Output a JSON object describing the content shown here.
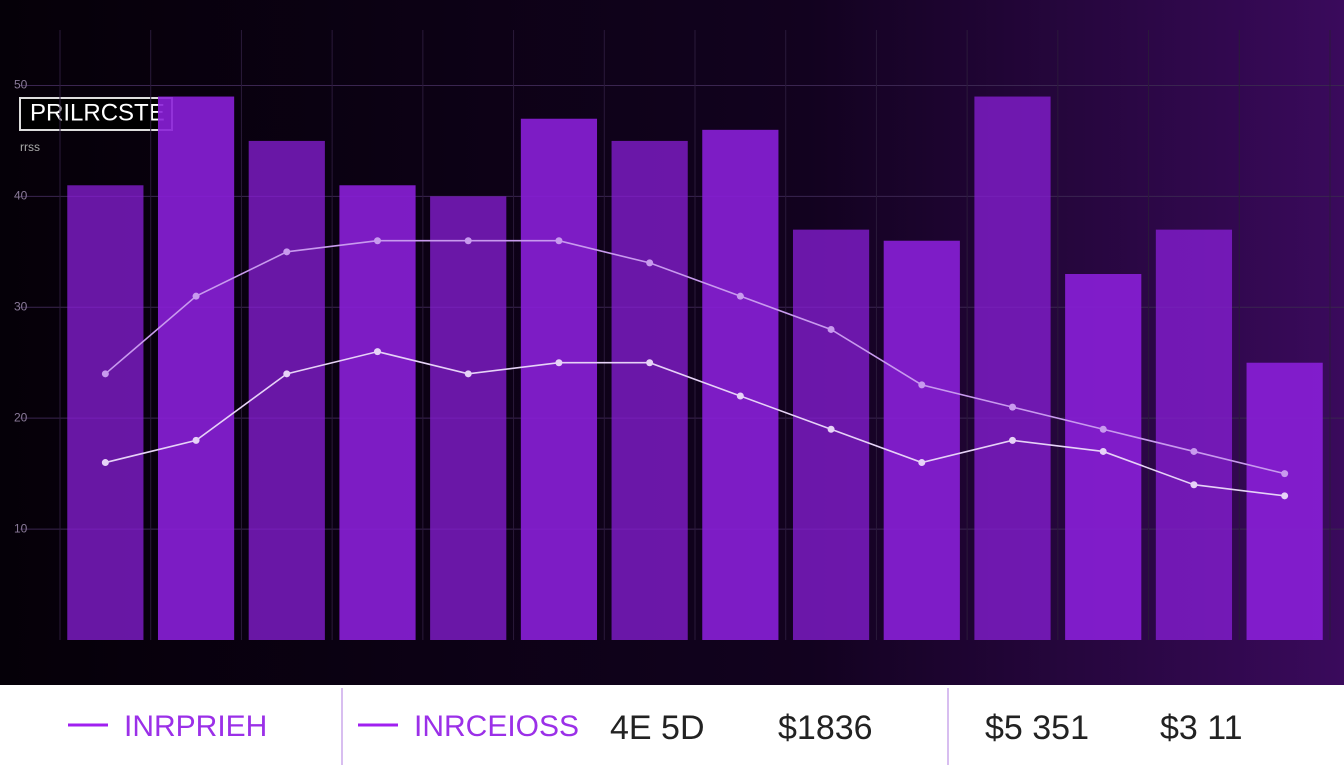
{
  "chart_data": {
    "type": "bar",
    "title": "PRILRCSTE",
    "subtitle": "rrss",
    "categories": [
      null,
      null,
      null,
      null,
      null,
      null,
      null,
      null,
      null,
      null,
      null,
      null,
      null,
      null
    ],
    "values": [
      41,
      49,
      45,
      41,
      40,
      47,
      45,
      46,
      37,
      36,
      49,
      33,
      37,
      25
    ],
    "color": "#8a1fd8",
    "series": [
      {
        "name": "INRPRIEH",
        "color": "#c89aee",
        "values": [
          24,
          31,
          35,
          36,
          36,
          36,
          34,
          31,
          28,
          23,
          21,
          19,
          17,
          15
        ]
      },
      {
        "name": "INRCEIOSS",
        "color": "#e6d2f7",
        "values": [
          16,
          18,
          24,
          26,
          24,
          25,
          25,
          22,
          19,
          16,
          18,
          17,
          14,
          13
        ]
      }
    ],
    "ylim": [
      0,
      55
    ],
    "yticks": [
      10,
      20,
      30,
      40,
      50
    ],
    "grid": true,
    "summary": [
      "4E 5D",
      "$1836",
      "$5 351",
      "$3 11"
    ]
  }
}
